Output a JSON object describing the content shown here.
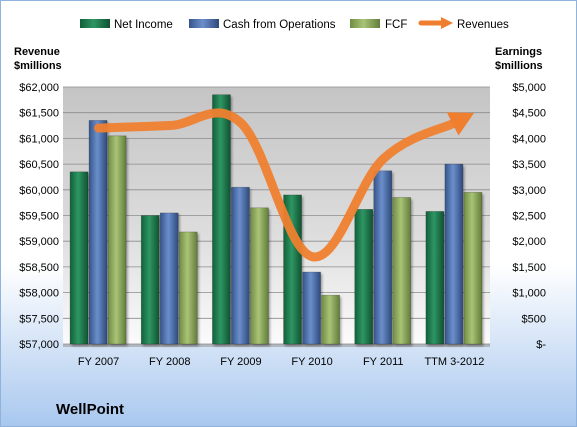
{
  "chart_data": {
    "type": "bar",
    "title": "",
    "company": "WellPoint",
    "categories": [
      "FY 2007",
      "FY 2008",
      "FY 2009",
      "FY 2010",
      "FY 2011",
      "TTM 3-2012"
    ],
    "left_axis": {
      "label_line1": "Revenue",
      "label_line2": "$millions",
      "min": 57000,
      "max": 62000,
      "step": 500,
      "tick_labels": [
        "$57,000",
        "$57,500",
        "$58,000",
        "$58,500",
        "$59,000",
        "$59,500",
        "$60,000",
        "$60,500",
        "$61,000",
        "$61,500",
        "$62,000"
      ]
    },
    "right_axis": {
      "label_line1": "Earnings",
      "label_line2": "$millions",
      "min": 0,
      "max": 5000,
      "step": 500,
      "tick_labels": [
        "$-",
        "$500",
        "$1,000",
        "$1,500",
        "$2,000",
        "$2,500",
        "$3,000",
        "$3,500",
        "$4,000",
        "$4,500",
        "$5,000"
      ]
    },
    "series": [
      {
        "name": "Net Income",
        "axis": "right",
        "kind": "bar",
        "color": "#1f7a4f",
        "values": [
          3350,
          2500,
          4850,
          2900,
          2620,
          2580
        ]
      },
      {
        "name": "Cash from Operations",
        "axis": "right",
        "kind": "bar",
        "color": "#4a6eac",
        "values": [
          4350,
          2550,
          3050,
          1400,
          3370,
          3500
        ]
      },
      {
        "name": "FCF",
        "axis": "right",
        "kind": "bar",
        "color": "#8aa85a",
        "values": [
          4050,
          2180,
          2650,
          950,
          2850,
          2950
        ]
      },
      {
        "name": "Revenues",
        "axis": "left",
        "kind": "line",
        "color": "#ef7f2f",
        "values": [
          61200,
          61250,
          61300,
          58700,
          60600,
          61300
        ]
      }
    ],
    "grid": true,
    "legend_position": "top"
  }
}
